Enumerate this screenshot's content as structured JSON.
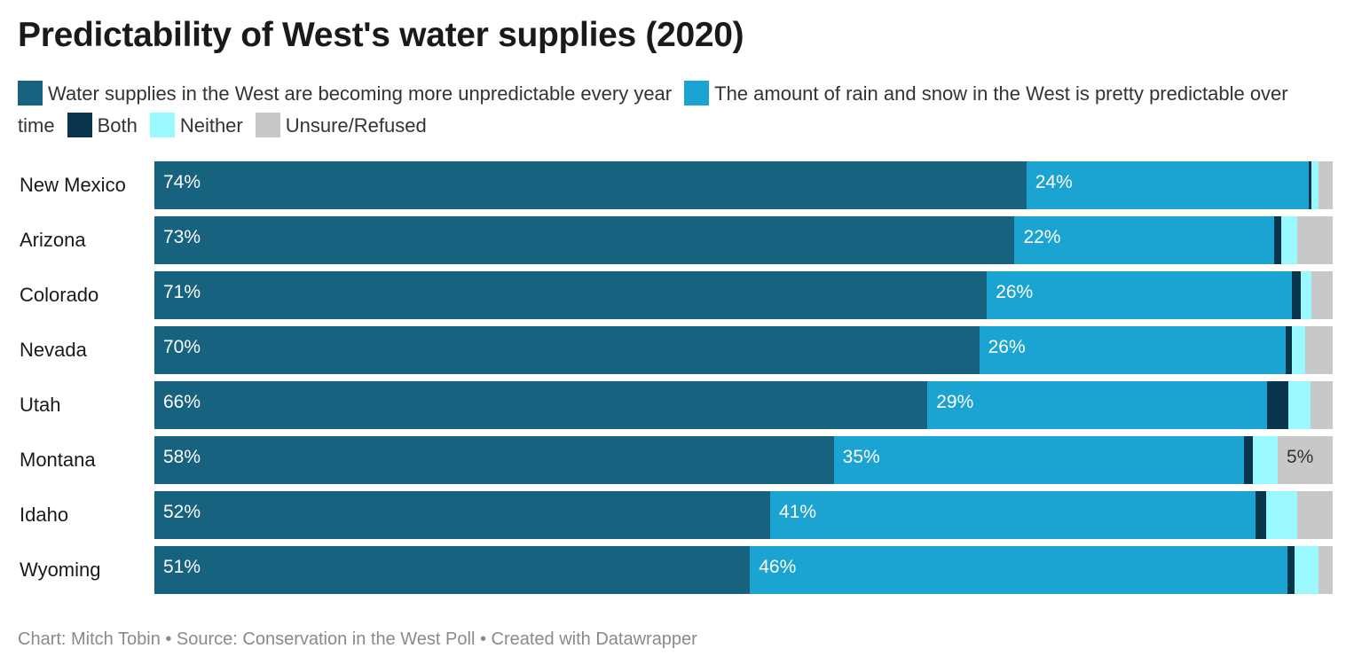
{
  "title": "Predictability of West's water supplies (2020)",
  "footer": "Chart: Mitch Tobin • Source: Conservation in the West Poll • Created with Datawrapper",
  "chart_data": {
    "type": "bar",
    "orientation": "horizontal",
    "stacked": true,
    "stack_total": 100,
    "categories": [
      "New Mexico",
      "Arizona",
      "Colorado",
      "Nevada",
      "Utah",
      "Montana",
      "Idaho",
      "Wyoming"
    ],
    "series": [
      {
        "name": "Water supplies in the West are becoming more unpredictable every year",
        "color": "#17627e",
        "values": [
          74,
          73,
          71,
          70,
          66,
          58,
          52,
          51
        ],
        "labels": [
          "74%",
          "73%",
          "71%",
          "70%",
          "66%",
          "58%",
          "52%",
          "51%"
        ]
      },
      {
        "name": "The amount of rain and snow in the West is pretty predictable over time",
        "color": "#1ba3d1",
        "values": [
          24,
          22,
          26,
          26,
          29,
          35,
          41,
          46
        ],
        "labels": [
          "24%",
          "22%",
          "26%",
          "26%",
          "29%",
          "35%",
          "41%",
          "46%"
        ]
      },
      {
        "name": "Both",
        "color": "#08344c",
        "values": [
          0.2,
          0.6,
          0.8,
          0.5,
          1.8,
          0.8,
          0.9,
          0.6
        ],
        "labels": [
          "",
          "",
          "",
          "",
          "",
          "",
          "",
          ""
        ]
      },
      {
        "name": "Neither",
        "color": "#99f9ff",
        "values": [
          0.6,
          1.4,
          0.9,
          1.2,
          1.9,
          2.1,
          2.6,
          2.1
        ],
        "labels": [
          "",
          "",
          "",
          "",
          "",
          "",
          "",
          ""
        ]
      },
      {
        "name": "Unsure/Refused",
        "color": "#c8c8c8",
        "values": [
          1.2,
          3.0,
          1.8,
          2.3,
          1.9,
          4.7,
          3.0,
          1.2
        ],
        "labels": [
          "",
          "",
          "",
          "",
          "",
          "5%",
          "",
          ""
        ]
      }
    ],
    "legend_position": "top",
    "grid": false
  }
}
